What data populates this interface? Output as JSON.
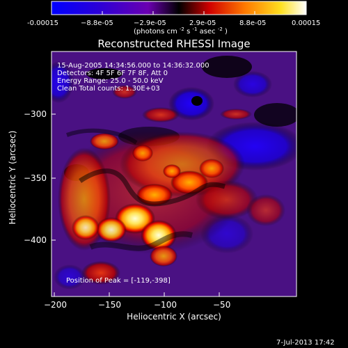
{
  "colorbar": {
    "ticks": [
      "-0.00015",
      "−8.8e-05",
      "−2.9e-05",
      "2.9e-05",
      "8.8e-05",
      "0.00015"
    ],
    "units_main": "(photons cm",
    "units_sup1": "-2",
    "units_mid": " s",
    "units_sup2": "-1",
    "units_end": " asec",
    "units_sup3": "-2",
    "units_close": ")"
  },
  "plot": {
    "title": "Reconstructed RHESSI Image",
    "annotations": {
      "time": "15-Aug-2005 14:34:56.000 to 14:36:32.000",
      "detectors": "Detectors: 4F 5F 6F 7F 8F, Att 0",
      "energy": "Energy Range: 25.0 - 50.0 keV",
      "clean": "Clean      Total counts: 1.30E+03",
      "peak": "Position of Peak = [-119,-398]"
    },
    "xlabel": "Heliocentric X (arcsec)",
    "ylabel": "Heliocentric Y (arcsec)",
    "xticks": [
      "−200",
      "−150",
      "−100",
      "−50"
    ],
    "yticks": [
      "−300",
      "−350",
      "−400"
    ]
  },
  "footer": {
    "timestamp": "7-Jul-2013 17:42"
  }
}
